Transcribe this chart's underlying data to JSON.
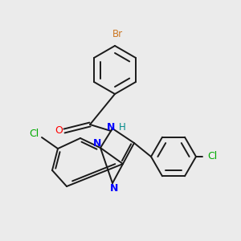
{
  "bg_color": "#ebebeb",
  "bond_color": "#1a1a1a",
  "atom_colors": {
    "Br": "#cc7722",
    "O": "#ff0000",
    "N": "#0000ff",
    "H_amide": "#008b8b",
    "Cl_left": "#00aa00",
    "Cl_right": "#00aa00"
  },
  "figsize": [
    3.0,
    3.0
  ],
  "dpi": 100
}
